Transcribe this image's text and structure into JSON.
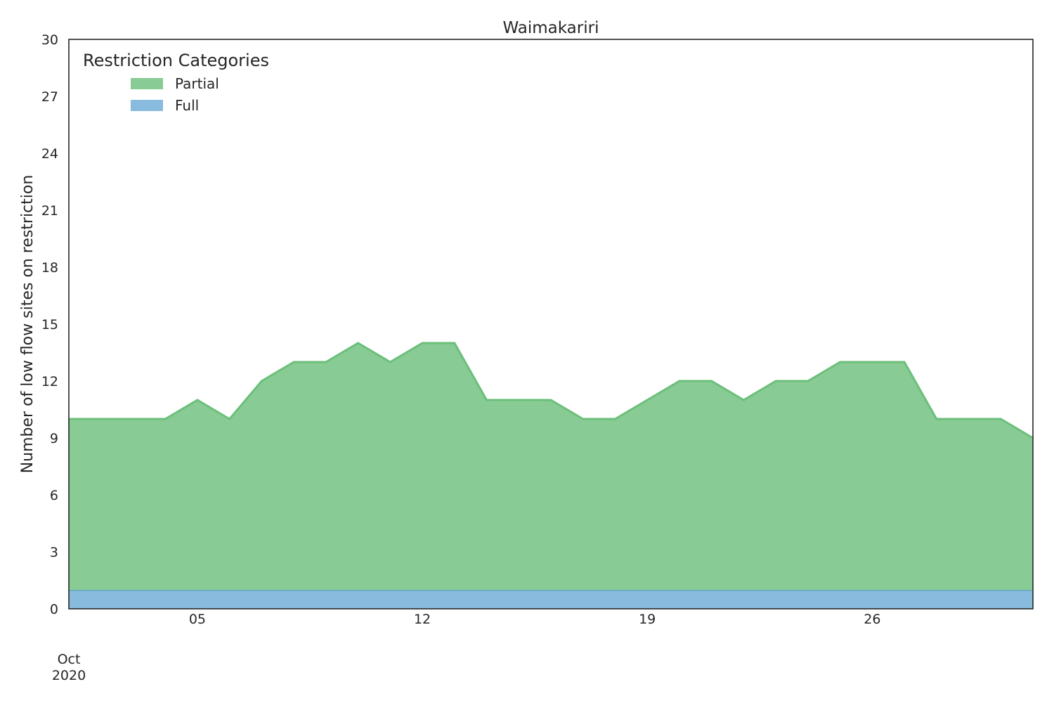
{
  "chart_data": {
    "type": "area",
    "stacked": true,
    "title": "Waimakariri",
    "xlabel": "",
    "ylabel": "Number of low flow sites on restriction",
    "x": [
      "2020-10-01",
      "2020-10-02",
      "2020-10-03",
      "2020-10-04",
      "2020-10-05",
      "2020-10-06",
      "2020-10-07",
      "2020-10-08",
      "2020-10-09",
      "2020-10-10",
      "2020-10-11",
      "2020-10-12",
      "2020-10-13",
      "2020-10-14",
      "2020-10-15",
      "2020-10-16",
      "2020-10-17",
      "2020-10-18",
      "2020-10-19",
      "2020-10-20",
      "2020-10-21",
      "2020-10-22",
      "2020-10-23",
      "2020-10-24",
      "2020-10-25",
      "2020-10-26",
      "2020-10-27",
      "2020-10-28",
      "2020-10-29",
      "2020-10-30",
      "2020-10-31"
    ],
    "xlim": [
      "2020-10-01",
      "2020-10-31"
    ],
    "ylim": [
      0,
      30
    ],
    "yticks": [
      0,
      3,
      6,
      9,
      12,
      15,
      18,
      21,
      24,
      27,
      30
    ],
    "xticks": [
      {
        "date": "2020-10-01",
        "label": "Oct",
        "sublabel": "2020"
      },
      {
        "date": "2020-10-05",
        "label": "05"
      },
      {
        "date": "2020-10-12",
        "label": "12"
      },
      {
        "date": "2020-10-19",
        "label": "19"
      },
      {
        "date": "2020-10-26",
        "label": "26"
      }
    ],
    "grid": false,
    "legend": {
      "title": "Restriction Categories",
      "placement": "top-left"
    },
    "series": [
      {
        "name": "Full",
        "color": "#88bbdd",
        "line_color": "#66aabb",
        "values": [
          1,
          1,
          1,
          1,
          1,
          1,
          1,
          1,
          1,
          1,
          1,
          1,
          1,
          1,
          1,
          1,
          1,
          1,
          1,
          1,
          1,
          1,
          1,
          1,
          1,
          1,
          1,
          1,
          1,
          1,
          1
        ]
      },
      {
        "name": "Partial",
        "color": "#88cb94",
        "line_color": "#6cbf7b",
        "values": [
          9,
          9,
          9,
          9,
          10,
          9,
          11,
          12,
          12,
          13,
          12,
          13,
          13,
          10,
          10,
          10,
          9,
          9,
          10,
          11,
          11,
          10,
          11,
          11,
          12,
          12,
          12,
          9,
          9,
          9,
          8
        ]
      }
    ],
    "legend_order": [
      "Partial",
      "Full"
    ]
  }
}
